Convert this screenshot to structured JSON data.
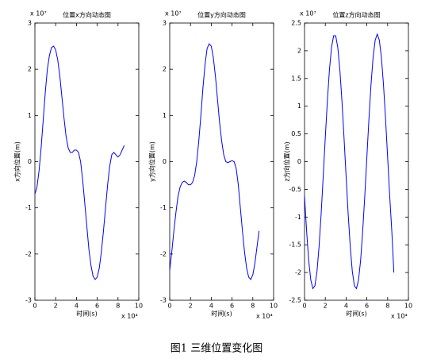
{
  "caption": "图1 三维位置变化图",
  "chart_data": [
    {
      "type": "line",
      "title": "位置x方向动态图",
      "xlabel": "时间(s)",
      "ylabel": "x方向位置(m)",
      "x_scale_label": "x 10⁴",
      "y_scale_label": "x 10⁷",
      "xlim": [
        0,
        10
      ],
      "xticks": [
        0,
        2,
        4,
        6,
        8,
        10
      ],
      "ylim": [
        -3,
        3
      ],
      "yticks": [
        -3,
        -2,
        -1,
        0,
        1,
        2,
        3
      ],
      "x": [
        0,
        0.2,
        0.4,
        0.6,
        0.8,
        1,
        1.2,
        1.4,
        1.6,
        1.8,
        2,
        2.2,
        2.4,
        2.6,
        2.8,
        3,
        3.2,
        3.4,
        3.6,
        3.8,
        4,
        4.2,
        4.4,
        4.6,
        4.8,
        5,
        5.2,
        5.4,
        5.6,
        5.8,
        6,
        6.2,
        6.4,
        6.6,
        6.8,
        7,
        7.2,
        7.4,
        7.6,
        7.8,
        8,
        8.2,
        8.4,
        8.6
      ],
      "series": [
        {
          "color": "#0000ff",
          "values": [
            -0.7,
            -0.55,
            -0.2,
            0.3,
            0.9,
            1.5,
            2.0,
            2.3,
            2.47,
            2.5,
            2.42,
            2.2,
            1.85,
            1.4,
            0.95,
            0.55,
            0.3,
            0.2,
            0.2,
            0.25,
            0.25,
            0.2,
            0.0,
            -0.4,
            -0.9,
            -1.4,
            -1.9,
            -2.25,
            -2.48,
            -2.55,
            -2.5,
            -2.3,
            -1.95,
            -1.5,
            -1.0,
            -0.5,
            -0.1,
            0.15,
            0.2,
            0.15,
            0.1,
            0.15,
            0.25,
            0.35
          ]
        }
      ]
    },
    {
      "type": "line",
      "title": "位置y方向动态图",
      "xlabel": "时间(s)",
      "ylabel": "y方向位置(m)",
      "x_scale_label": "x 10⁴",
      "y_scale_label": "x 10⁷",
      "xlim": [
        0,
        10
      ],
      "xticks": [
        0,
        2,
        4,
        6,
        8,
        10
      ],
      "ylim": [
        -3,
        3
      ],
      "yticks": [
        -3,
        -2,
        -1,
        0,
        1,
        2,
        3
      ],
      "x": [
        0,
        0.2,
        0.4,
        0.6,
        0.8,
        1,
        1.2,
        1.4,
        1.6,
        1.8,
        2,
        2.2,
        2.4,
        2.6,
        2.8,
        3,
        3.2,
        3.4,
        3.6,
        3.8,
        4,
        4.2,
        4.4,
        4.6,
        4.8,
        5,
        5.2,
        5.4,
        5.6,
        5.8,
        6,
        6.2,
        6.4,
        6.6,
        6.8,
        7,
        7.2,
        7.4,
        7.6,
        7.8,
        8,
        8.2,
        8.4,
        8.6
      ],
      "series": [
        {
          "color": "#0000ff",
          "values": [
            -2.35,
            -1.95,
            -1.5,
            -1.1,
            -0.75,
            -0.55,
            -0.45,
            -0.42,
            -0.45,
            -0.5,
            -0.5,
            -0.45,
            -0.3,
            0.0,
            0.45,
            1.0,
            1.6,
            2.1,
            2.45,
            2.55,
            2.5,
            2.25,
            1.85,
            1.35,
            0.85,
            0.45,
            0.15,
            0.0,
            -0.02,
            0.0,
            0.02,
            0.0,
            -0.15,
            -0.5,
            -1.0,
            -1.5,
            -1.95,
            -2.3,
            -2.5,
            -2.55,
            -2.45,
            -2.2,
            -1.85,
            -1.5
          ]
        }
      ]
    },
    {
      "type": "line",
      "title": "位置z方向动态图",
      "xlabel": "时间(s)",
      "ylabel": "z方向位置(m)",
      "x_scale_label": "x 10⁴",
      "y_scale_label": "x 10⁷",
      "xlim": [
        0,
        10
      ],
      "xticks": [
        0,
        2,
        4,
        6,
        8,
        10
      ],
      "ylim": [
        -2.5,
        2.5
      ],
      "yticks": [
        -2.5,
        -2,
        -1.5,
        -1,
        -0.5,
        0,
        0.5,
        1,
        1.5,
        2,
        2.5
      ],
      "x": [
        0,
        0.2,
        0.4,
        0.6,
        0.8,
        1,
        1.2,
        1.4,
        1.6,
        1.8,
        2,
        2.2,
        2.4,
        2.6,
        2.8,
        3,
        3.2,
        3.4,
        3.6,
        3.8,
        4,
        4.2,
        4.4,
        4.6,
        4.8,
        5,
        5.2,
        5.4,
        5.6,
        5.8,
        6,
        6.2,
        6.4,
        6.6,
        6.8,
        7,
        7.2,
        7.4,
        7.6,
        7.8,
        8,
        8.2,
        8.4,
        8.6
      ],
      "series": [
        {
          "color": "#0000ff",
          "values": [
            -0.62,
            -1.25,
            -1.78,
            -2.13,
            -2.29,
            -2.24,
            -1.98,
            -1.53,
            -0.94,
            -0.26,
            0.44,
            1.1,
            1.66,
            2.06,
            2.27,
            2.27,
            2.06,
            1.66,
            1.1,
            0.44,
            -0.26,
            -0.94,
            -1.53,
            -1.98,
            -2.24,
            -2.29,
            -2.13,
            -1.78,
            -1.25,
            -0.62,
            0.08,
            0.77,
            1.39,
            1.88,
            2.19,
            2.3,
            2.19,
            1.88,
            1.39,
            0.77,
            0.08,
            -0.62,
            -1.25,
            -2.0
          ]
        }
      ]
    }
  ]
}
